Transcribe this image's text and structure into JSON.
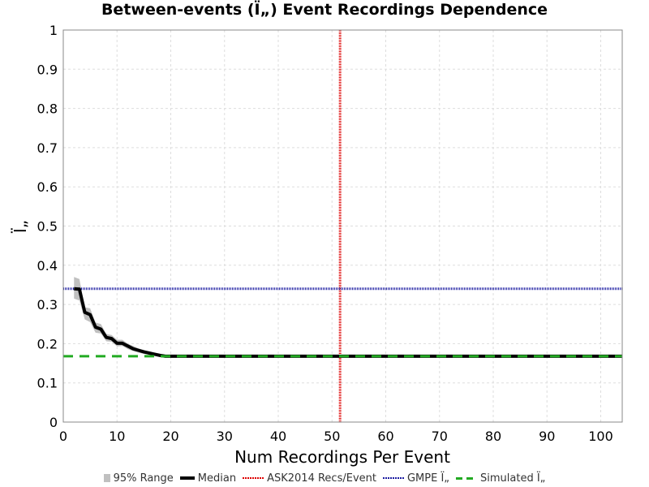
{
  "chart_data": {
    "type": "line",
    "title": "Between-events (Ï„) Event Recordings Dependence",
    "xlabel": "Num Recordings Per Event",
    "ylabel": "Ï„",
    "xlim": [
      0,
      104
    ],
    "ylim": [
      0,
      1
    ],
    "xticks": [
      0,
      10,
      20,
      30,
      40,
      50,
      60,
      70,
      80,
      90,
      100
    ],
    "yticks": [
      0,
      0.1,
      0.2,
      0.3,
      0.4,
      0.5,
      0.6,
      0.7,
      0.8,
      0.9,
      1
    ],
    "grid": true,
    "legend_position": "bottom",
    "series": [
      {
        "name": "95% Range",
        "kind": "band",
        "color": "#c0c0c0",
        "x": [
          2,
          3,
          4,
          5,
          6,
          7,
          8,
          9,
          10,
          11,
          12,
          13,
          14,
          15,
          16,
          17,
          18,
          19,
          20,
          25,
          30,
          40,
          50,
          60,
          70,
          80,
          90,
          100,
          104
        ],
        "lower": [
          0.315,
          0.31,
          0.262,
          0.255,
          0.228,
          0.226,
          0.206,
          0.205,
          0.193,
          0.194,
          0.186,
          0.181,
          0.177,
          0.174,
          0.172,
          0.17,
          0.168,
          0.166,
          0.166,
          0.166,
          0.166,
          0.166,
          0.166,
          0.166,
          0.166,
          0.166,
          0.166,
          0.166,
          0.166
        ],
        "upper": [
          0.37,
          0.365,
          0.293,
          0.29,
          0.254,
          0.25,
          0.225,
          0.222,
          0.21,
          0.21,
          0.2,
          0.194,
          0.188,
          0.184,
          0.18,
          0.176,
          0.173,
          0.171,
          0.17,
          0.17,
          0.17,
          0.17,
          0.17,
          0.17,
          0.17,
          0.17,
          0.17,
          0.17,
          0.17
        ]
      },
      {
        "name": "Median",
        "kind": "line",
        "color": "#000000",
        "x": [
          2,
          3,
          4,
          5,
          6,
          7,
          8,
          9,
          10,
          11,
          12,
          13,
          14,
          15,
          16,
          17,
          18,
          19,
          20,
          25,
          30,
          40,
          50,
          60,
          70,
          80,
          90,
          100,
          104
        ],
        "y": [
          0.34,
          0.339,
          0.28,
          0.274,
          0.242,
          0.237,
          0.216,
          0.213,
          0.201,
          0.201,
          0.194,
          0.187,
          0.183,
          0.179,
          0.176,
          0.173,
          0.17,
          0.168,
          0.168,
          0.168,
          0.168,
          0.168,
          0.168,
          0.168,
          0.168,
          0.168,
          0.168,
          0.168,
          0.168
        ]
      },
      {
        "name": "ASK2014 Recs/Event",
        "kind": "vline",
        "color": "#dd0000",
        "x": 51.5
      },
      {
        "name": "GMPE Ï„",
        "kind": "hline",
        "color": "#1a1aa0",
        "y": 0.34
      },
      {
        "name": "Simulated Ï„",
        "kind": "hline-dashed",
        "color": "#22aa22",
        "y": 0.168
      }
    ]
  }
}
